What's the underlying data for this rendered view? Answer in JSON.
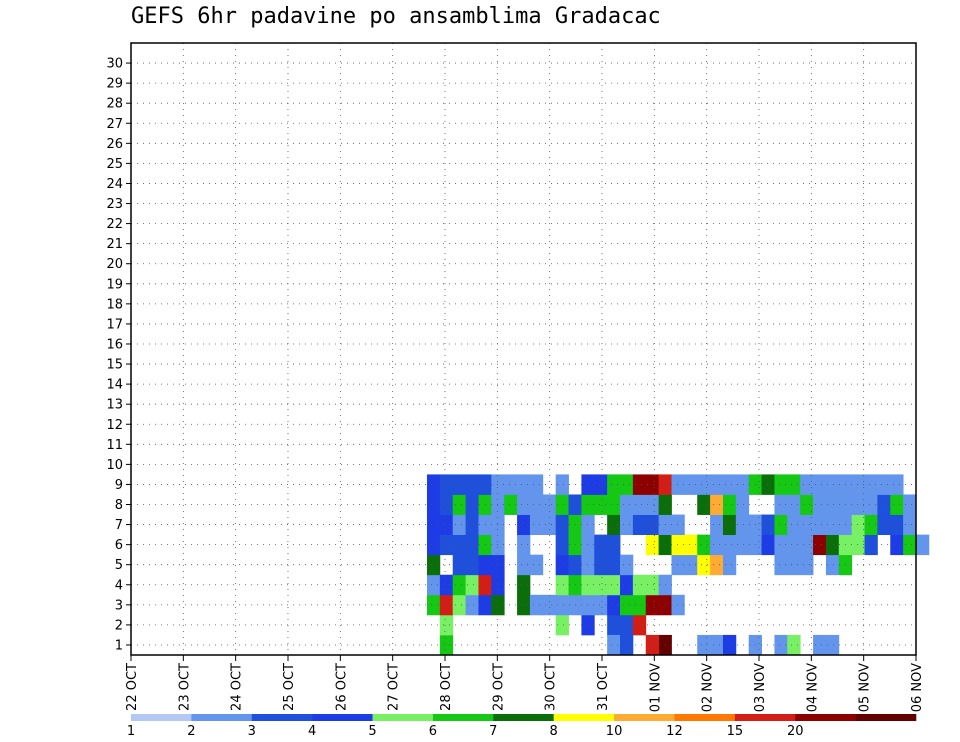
{
  "chart_data": {
    "type": "heatmap",
    "title": "GEFS 6hr padavine po ansamblima Gradacac",
    "xlabel": "",
    "ylabel": "",
    "members": [
      1,
      2,
      3,
      4,
      5,
      6,
      7,
      8,
      9,
      10,
      11,
      12,
      13,
      14,
      15,
      16,
      17,
      18,
      19,
      20,
      21,
      22,
      23,
      24,
      25,
      26,
      27,
      28,
      29,
      30
    ],
    "x_tick_labels": [
      "22 OCT",
      "23 OCT",
      "24 OCT",
      "25 OCT",
      "26 OCT",
      "27 OCT",
      "28 OCT",
      "29 OCT",
      "30 OCT",
      "31 OCT",
      "01 NOV",
      "02 NOV",
      "03 NOV",
      "04 NOV",
      "05 NOV",
      "06 NOV"
    ],
    "time_step": "6hr",
    "num_time_steps": 61,
    "legend": {
      "placement": "bottom",
      "labels": [
        "1",
        "2",
        "3",
        "4",
        "5",
        "6",
        "7",
        "8",
        "10",
        "12",
        "15",
        "20"
      ],
      "colors": [
        "#b4c8f4",
        "#6495ed",
        "#1e50dc",
        "#1e3ce6",
        "#78f064",
        "#14c814",
        "#0a6e0a",
        "#ffff00",
        "#ffaa32",
        "#ff7800",
        "#d21e14",
        "#8c0000",
        "#640000"
      ]
    },
    "cells": [
      [
        24,
        0,
        5
      ],
      [
        24,
        1,
        4
      ],
      [
        33,
        1,
        4
      ],
      [
        35,
        1,
        3
      ],
      [
        37,
        1,
        2
      ],
      [
        38,
        1,
        2
      ],
      [
        39,
        1,
        10
      ],
      [
        41,
        0,
        12
      ],
      [
        40,
        0,
        10
      ],
      [
        37,
        0,
        1
      ],
      [
        38,
        0,
        2
      ],
      [
        44,
        0,
        1
      ],
      [
        45,
        0,
        1
      ],
      [
        46,
        0,
        3
      ],
      [
        48,
        0,
        1
      ],
      [
        50,
        0,
        1
      ],
      [
        51,
        0,
        4
      ],
      [
        53,
        0,
        1
      ],
      [
        54,
        0,
        1
      ],
      [
        23,
        2,
        5
      ],
      [
        24,
        2,
        10
      ],
      [
        25,
        2,
        4
      ],
      [
        26,
        2,
        1
      ],
      [
        27,
        2,
        3
      ],
      [
        28,
        2,
        6
      ],
      [
        30,
        2,
        6
      ],
      [
        31,
        2,
        1
      ],
      [
        32,
        2,
        1
      ],
      [
        33,
        2,
        1
      ],
      [
        34,
        2,
        1
      ],
      [
        35,
        2,
        1
      ],
      [
        36,
        2,
        1
      ],
      [
        37,
        2,
        3
      ],
      [
        38,
        2,
        5
      ],
      [
        39,
        2,
        5
      ],
      [
        40,
        2,
        11
      ],
      [
        41,
        2,
        11
      ],
      [
        42,
        2,
        1
      ],
      [
        23,
        3,
        1
      ],
      [
        24,
        3,
        3
      ],
      [
        25,
        3,
        5
      ],
      [
        26,
        3,
        4
      ],
      [
        27,
        3,
        10
      ],
      [
        28,
        3,
        3
      ],
      [
        30,
        3,
        6
      ],
      [
        33,
        3,
        4
      ],
      [
        34,
        3,
        5
      ],
      [
        35,
        3,
        4
      ],
      [
        36,
        3,
        4
      ],
      [
        37,
        3,
        4
      ],
      [
        38,
        3,
        3
      ],
      [
        39,
        3,
        4
      ],
      [
        40,
        3,
        4
      ],
      [
        41,
        3,
        1
      ],
      [
        23,
        4,
        6
      ],
      [
        25,
        4,
        2
      ],
      [
        26,
        4,
        2
      ],
      [
        27,
        4,
        3
      ],
      [
        28,
        4,
        3
      ],
      [
        30,
        4,
        1
      ],
      [
        31,
        4,
        1
      ],
      [
        33,
        4,
        3
      ],
      [
        34,
        4,
        2
      ],
      [
        35,
        4,
        1
      ],
      [
        36,
        4,
        2
      ],
      [
        37,
        4,
        2
      ],
      [
        38,
        4,
        1
      ],
      [
        42,
        4,
        1
      ],
      [
        43,
        4,
        1
      ],
      [
        44,
        4,
        7
      ],
      [
        45,
        4,
        8
      ],
      [
        46,
        4,
        1
      ],
      [
        50,
        4,
        1
      ],
      [
        51,
        4,
        1
      ],
      [
        52,
        4,
        1
      ],
      [
        54,
        4,
        1
      ],
      [
        55,
        4,
        5
      ],
      [
        23,
        5,
        3
      ],
      [
        24,
        5,
        2
      ],
      [
        25,
        5,
        2
      ],
      [
        26,
        5,
        2
      ],
      [
        27,
        5,
        5
      ],
      [
        28,
        5,
        1
      ],
      [
        30,
        5,
        1
      ],
      [
        33,
        5,
        2
      ],
      [
        34,
        5,
        5
      ],
      [
        35,
        5,
        1
      ],
      [
        36,
        5,
        2
      ],
      [
        37,
        5,
        2
      ],
      [
        40,
        5,
        7
      ],
      [
        41,
        5,
        6
      ],
      [
        42,
        5,
        7
      ],
      [
        43,
        5,
        7
      ],
      [
        44,
        5,
        5
      ],
      [
        45,
        5,
        1
      ],
      [
        46,
        5,
        1
      ],
      [
        47,
        5,
        1
      ],
      [
        48,
        5,
        1
      ],
      [
        49,
        5,
        3
      ],
      [
        50,
        5,
        1
      ],
      [
        51,
        5,
        1
      ],
      [
        52,
        5,
        1
      ],
      [
        53,
        5,
        11
      ],
      [
        54,
        5,
        6
      ],
      [
        55,
        5,
        4
      ],
      [
        56,
        5,
        4
      ],
      [
        57,
        5,
        2
      ],
      [
        59,
        5,
        3
      ],
      [
        60,
        5,
        5
      ],
      [
        61,
        5,
        1
      ],
      [
        23,
        6,
        3
      ],
      [
        24,
        6,
        3
      ],
      [
        25,
        6,
        1
      ],
      [
        26,
        6,
        2
      ],
      [
        27,
        6,
        1
      ],
      [
        28,
        6,
        1
      ],
      [
        30,
        6,
        3
      ],
      [
        31,
        6,
        1
      ],
      [
        32,
        6,
        1
      ],
      [
        33,
        6,
        2
      ],
      [
        34,
        6,
        5
      ],
      [
        35,
        6,
        1
      ],
      [
        37,
        6,
        6
      ],
      [
        38,
        6,
        1
      ],
      [
        39,
        6,
        2
      ],
      [
        40,
        6,
        2
      ],
      [
        41,
        6,
        1
      ],
      [
        42,
        6,
        1
      ],
      [
        45,
        6,
        1
      ],
      [
        46,
        6,
        6
      ],
      [
        47,
        6,
        1
      ],
      [
        48,
        6,
        1
      ],
      [
        49,
        6,
        2
      ],
      [
        50,
        6,
        5
      ],
      [
        51,
        6,
        1
      ],
      [
        52,
        6,
        1
      ],
      [
        53,
        6,
        1
      ],
      [
        54,
        6,
        1
      ],
      [
        55,
        6,
        1
      ],
      [
        56,
        6,
        4
      ],
      [
        57,
        6,
        5
      ],
      [
        58,
        6,
        2
      ],
      [
        59,
        6,
        2
      ],
      [
        60,
        6,
        1
      ],
      [
        23,
        7,
        3
      ],
      [
        24,
        7,
        2
      ],
      [
        25,
        7,
        5
      ],
      [
        26,
        7,
        2
      ],
      [
        27,
        7,
        5
      ],
      [
        28,
        7,
        1
      ],
      [
        29,
        7,
        5
      ],
      [
        30,
        7,
        1
      ],
      [
        31,
        7,
        1
      ],
      [
        32,
        7,
        1
      ],
      [
        33,
        7,
        5
      ],
      [
        34,
        7,
        2
      ],
      [
        35,
        7,
        5
      ],
      [
        36,
        7,
        5
      ],
      [
        37,
        7,
        5
      ],
      [
        38,
        7,
        1
      ],
      [
        39,
        7,
        1
      ],
      [
        40,
        7,
        1
      ],
      [
        41,
        7,
        6
      ],
      [
        44,
        7,
        6
      ],
      [
        45,
        7,
        8
      ],
      [
        46,
        7,
        5
      ],
      [
        47,
        7,
        1
      ],
      [
        50,
        7,
        1
      ],
      [
        51,
        7,
        1
      ],
      [
        52,
        7,
        5
      ],
      [
        53,
        7,
        1
      ],
      [
        54,
        7,
        1
      ],
      [
        55,
        7,
        1
      ],
      [
        56,
        7,
        1
      ],
      [
        57,
        7,
        1
      ],
      [
        58,
        7,
        2
      ],
      [
        59,
        7,
        5
      ],
      [
        60,
        7,
        1
      ],
      [
        23,
        8,
        3
      ],
      [
        24,
        8,
        2
      ],
      [
        25,
        8,
        2
      ],
      [
        26,
        8,
        2
      ],
      [
        27,
        8,
        2
      ],
      [
        28,
        8,
        1
      ],
      [
        29,
        8,
        1
      ],
      [
        30,
        8,
        1
      ],
      [
        31,
        8,
        1
      ],
      [
        33,
        8,
        1
      ],
      [
        35,
        8,
        3
      ],
      [
        36,
        8,
        3
      ],
      [
        37,
        8,
        5
      ],
      [
        38,
        8,
        5
      ],
      [
        39,
        8,
        11
      ],
      [
        40,
        8,
        11
      ],
      [
        41,
        8,
        10
      ],
      [
        42,
        8,
        1
      ],
      [
        43,
        8,
        1
      ],
      [
        44,
        8,
        1
      ],
      [
        45,
        8,
        1
      ],
      [
        46,
        8,
        1
      ],
      [
        47,
        8,
        1
      ],
      [
        48,
        8,
        5
      ],
      [
        49,
        8,
        6
      ],
      [
        50,
        8,
        5
      ],
      [
        51,
        8,
        5
      ],
      [
        52,
        8,
        1
      ],
      [
        53,
        8,
        1
      ],
      [
        54,
        8,
        1
      ],
      [
        55,
        8,
        1
      ],
      [
        56,
        8,
        1
      ],
      [
        57,
        8,
        1
      ],
      [
        58,
        8,
        1
      ],
      [
        59,
        8,
        1
      ]
    ]
  }
}
